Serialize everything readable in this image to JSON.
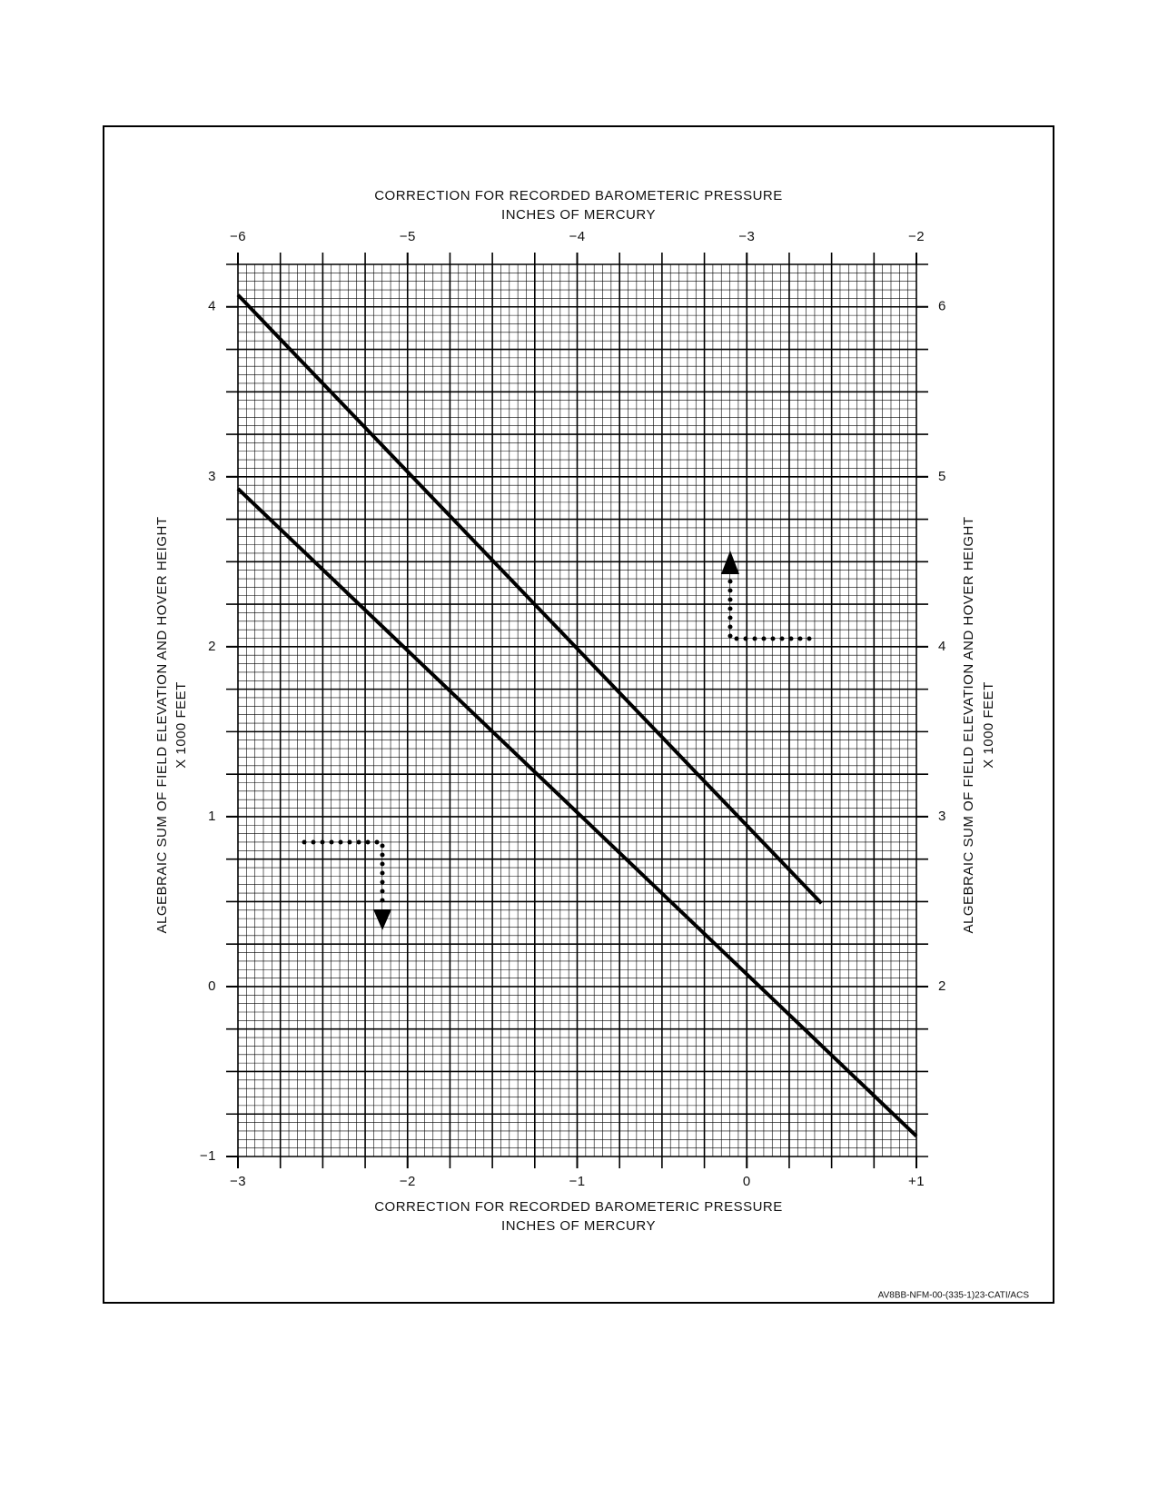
{
  "chart_data": {
    "type": "line",
    "x2label": [
      "CORRECTION FOR RECORDED BAROMETERIC PRESSURE",
      "INCHES OF MERCURY"
    ],
    "xlabel": [
      "CORRECTION FOR RECORDED BAROMETERIC PRESSURE",
      "INCHES OF MERCURY"
    ],
    "ylabel": [
      "ALGEBRAIC SUM OF FIELD ELEVATION AND HOVER HEIGHT",
      "X 1000 FEET"
    ],
    "y2label": [
      "ALGEBRAIC SUM OF FIELD ELEVATION AND HOVER HEIGHT",
      "X 1000 FEET"
    ],
    "source_note": "AV8BB-NFM-00-(335-1)23-CATI/ACS",
    "xlim": [
      -3,
      1
    ],
    "xticks": [
      {
        "value": -3,
        "label": "−3"
      },
      {
        "value": -2,
        "label": "−2"
      },
      {
        "value": -1,
        "label": "−1"
      },
      0,
      {
        "value": 1,
        "label": "+1"
      }
    ],
    "x2lim": [
      -6,
      -2
    ],
    "x2ticks": [
      {
        "value": -6,
        "label": "−6"
      },
      {
        "value": -5,
        "label": "−5"
      },
      {
        "value": -4,
        "label": "−4"
      },
      {
        "value": -3,
        "label": "−3"
      },
      {
        "value": -2,
        "label": "−2"
      }
    ],
    "ylim": [
      -1,
      4.25
    ],
    "yticks": [
      {
        "value": -1,
        "label": "−1"
      },
      0,
      1,
      2,
      3,
      4
    ],
    "y2lim": [
      1,
      6.25
    ],
    "y2ticks": [
      2,
      3,
      4,
      5,
      6
    ],
    "grid": true,
    "series": [
      {
        "color": "#000000",
        "x": [
          -3,
          0.44
        ],
        "values": [
          4.07,
          0.49
        ]
      },
      {
        "color": "#000000",
        "x": [
          -3,
          1
        ],
        "values": [
          2.93,
          -0.88
        ]
      }
    ]
  }
}
